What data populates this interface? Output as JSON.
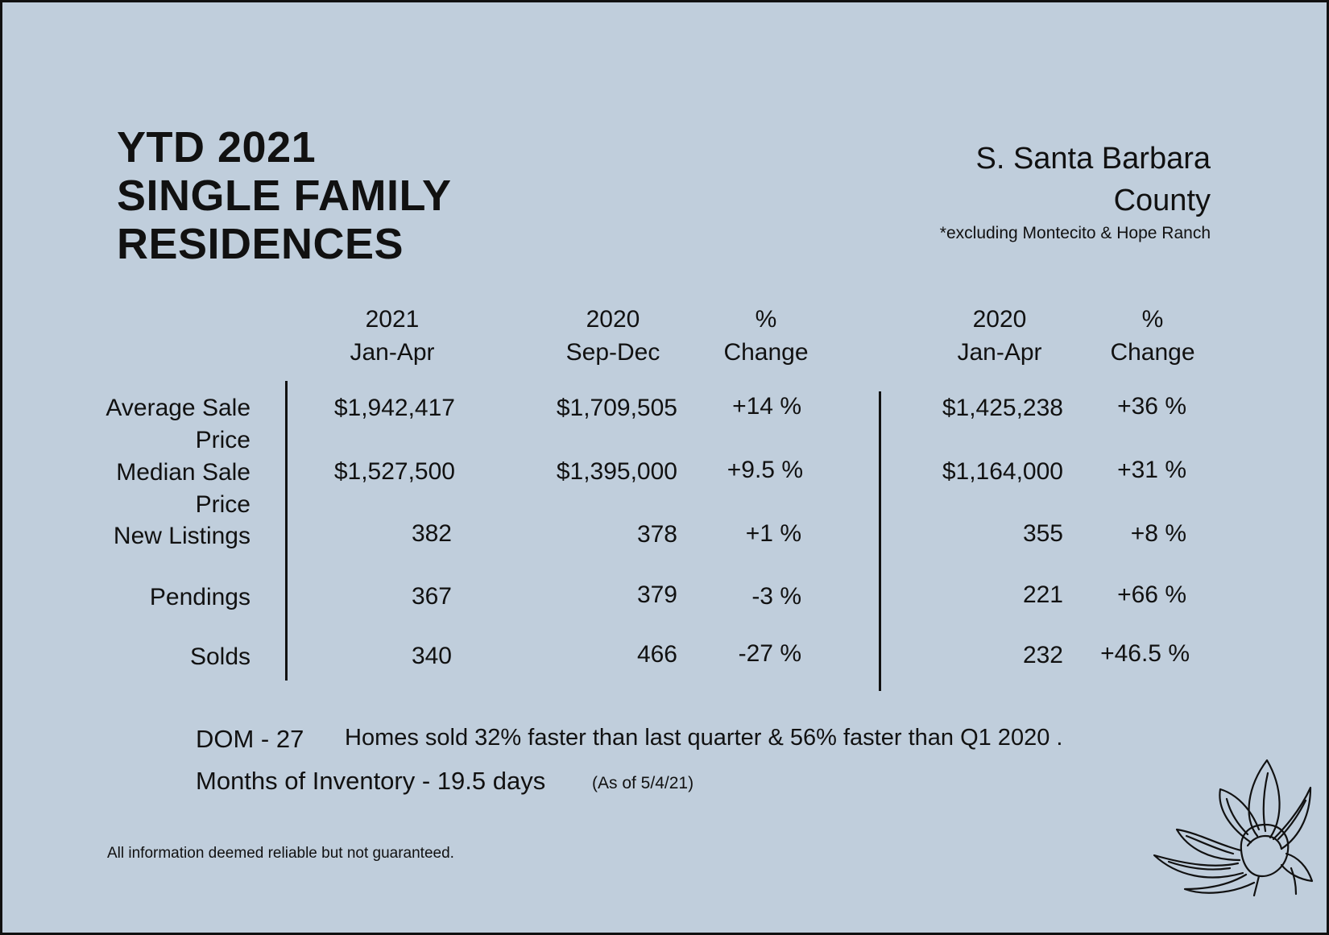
{
  "title": {
    "line1": "YTD 2021",
    "line2": "SINGLE FAMILY",
    "line3": "RESIDENCES"
  },
  "region": {
    "line1": "S. Santa Barbara",
    "line2": "County",
    "note": "*excluding Montecito & Hope Ranch"
  },
  "columns": [
    {
      "line1": "2021",
      "line2": "Jan-Apr"
    },
    {
      "line1": "2020",
      "line2": "Sep-Dec"
    },
    {
      "line1": "%",
      "line2": "Change"
    },
    {
      "line1": "2020",
      "line2": "Jan-Apr"
    },
    {
      "line1": "%",
      "line2": "Change"
    }
  ],
  "rows": [
    {
      "label1": "Average Sale",
      "label2": "Price",
      "v2021": "$1,942,417",
      "v2020sd": "$1,709,505",
      "chg1": "+14 %",
      "v2020ja": "$1,425,238",
      "chg2": "+36 %"
    },
    {
      "label1": "Median Sale",
      "label2": "Price",
      "v2021": "$1,527,500",
      "v2020sd": "$1,395,000",
      "chg1": "+9.5 %",
      "v2020ja": "$1,164,000",
      "chg2": "+31 %"
    },
    {
      "label1": "New Listings",
      "v2021": "382",
      "v2020sd": "378",
      "chg1": "+1 %",
      "v2020ja": "355",
      "chg2": "+8 %"
    },
    {
      "label1": "Pendings",
      "v2021": "367",
      "v2020sd": "379",
      "chg1": "-3 %",
      "v2020ja": "221",
      "chg2": "+66 %"
    },
    {
      "label1": "Solds",
      "v2021": "340",
      "v2020sd": "466",
      "chg1": "-27 %",
      "v2020ja": "232",
      "chg2": "+46.5 %"
    }
  ],
  "dom": {
    "label": "DOM - 27",
    "text": "Homes sold 32% faster than last quarter &  56% faster than Q1 2020 ."
  },
  "inventory": {
    "label": "Months of Inventory - 19.5 days",
    "asof": "(As of 5/4/21)"
  },
  "disclaimer": "All information deemed reliable but not guaranteed.",
  "icons": {
    "flower": "magnolia-flower-icon"
  }
}
